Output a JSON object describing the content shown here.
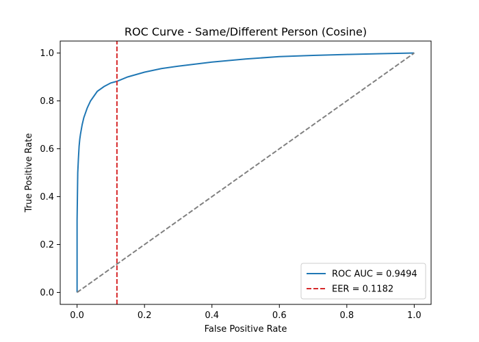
{
  "chart_data": {
    "type": "line",
    "title": "ROC Curve - Same/Different Person (Cosine)",
    "xlabel": "False Positive Rate",
    "ylabel": "True Positive Rate",
    "xlim": [
      -0.05,
      1.05
    ],
    "ylim": [
      -0.05,
      1.05
    ],
    "xticks": [
      "0.0",
      "0.2",
      "0.4",
      "0.6",
      "0.8",
      "1.0"
    ],
    "yticks": [
      "0.0",
      "0.2",
      "0.4",
      "0.6",
      "0.8",
      "1.0"
    ],
    "grid": false,
    "legend_position": "lower-right",
    "series": [
      {
        "name": "ROC AUC = 0.9494",
        "color": "#1f77b4",
        "style": "solid",
        "x": [
          0.0,
          0.0,
          0.002,
          0.004,
          0.006,
          0.008,
          0.01,
          0.015,
          0.02,
          0.03,
          0.04,
          0.05,
          0.06,
          0.08,
          0.1,
          0.1182,
          0.15,
          0.2,
          0.25,
          0.3,
          0.4,
          0.5,
          0.6,
          0.7,
          0.8,
          0.9,
          1.0
        ],
        "y": [
          0.0,
          0.3,
          0.5,
          0.56,
          0.61,
          0.64,
          0.66,
          0.7,
          0.73,
          0.77,
          0.8,
          0.82,
          0.84,
          0.86,
          0.875,
          0.8818,
          0.9,
          0.92,
          0.935,
          0.945,
          0.962,
          0.975,
          0.985,
          0.99,
          0.994,
          0.997,
          1.0
        ]
      },
      {
        "name": "EER = 0.1182",
        "color": "#d62728",
        "style": "dashed",
        "x": [
          0.1182,
          0.1182
        ],
        "y": [
          -0.05,
          1.05
        ]
      },
      {
        "color": "#7f7f7f",
        "style": "dashed",
        "x": [
          0.0,
          1.0
        ],
        "y": [
          0.0,
          1.0
        ]
      }
    ]
  }
}
